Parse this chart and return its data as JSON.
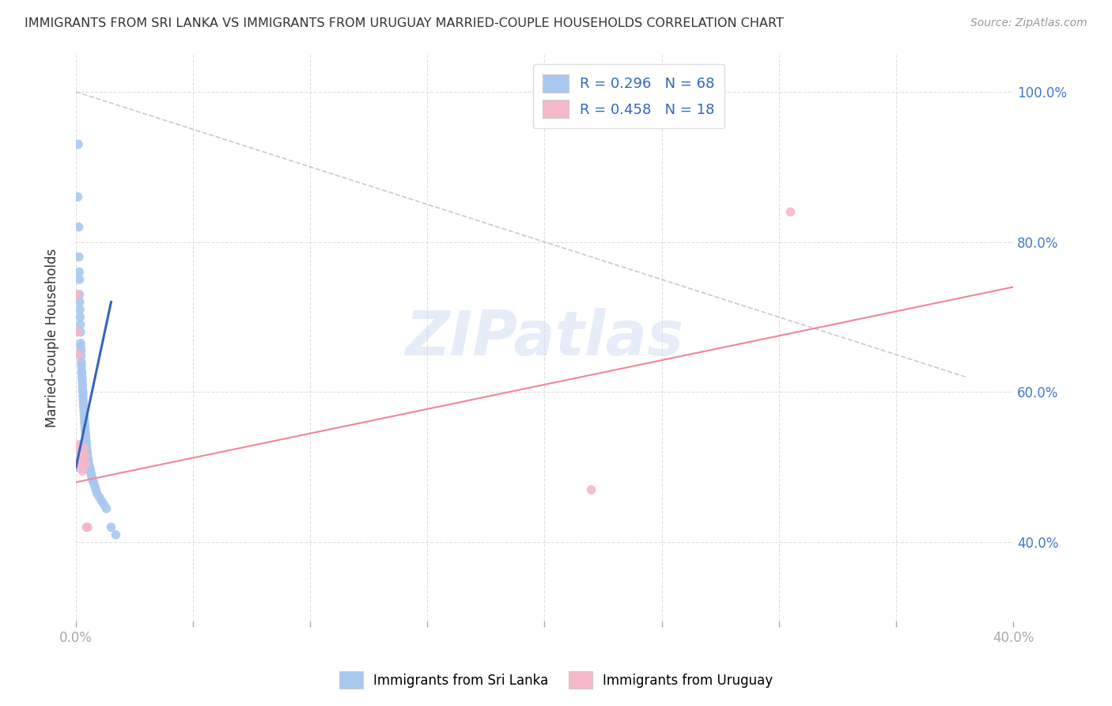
{
  "title": "IMMIGRANTS FROM SRI LANKA VS IMMIGRANTS FROM URUGUAY MARRIED-COUPLE HOUSEHOLDS CORRELATION CHART",
  "source": "Source: ZipAtlas.com",
  "ylabel": "Married-couple Households",
  "ytick_vals": [
    0.4,
    0.6,
    0.8,
    1.0
  ],
  "xlim": [
    0.0,
    0.4
  ],
  "ylim": [
    0.295,
    1.05
  ],
  "sri_lanka_R": 0.296,
  "sri_lanka_N": 68,
  "uruguay_R": 0.458,
  "uruguay_N": 18,
  "sri_lanka_color": "#a8c8f0",
  "uruguay_color": "#f4b8c8",
  "sri_lanka_line_color": "#3366bb",
  "uruguay_line_color": "#ee8899",
  "diagonal_color": "#bbbbcc",
  "background_color": "#ffffff",
  "watermark": "ZIPatlas",
  "sl_x": [
    0.0005,
    0.0008,
    0.001,
    0.0012,
    0.0013,
    0.0014,
    0.0015,
    0.0015,
    0.0016,
    0.0017,
    0.0018,
    0.0019,
    0.002,
    0.002,
    0.0021,
    0.0022,
    0.0022,
    0.0023,
    0.0024,
    0.0025,
    0.0025,
    0.0026,
    0.0027,
    0.0028,
    0.0028,
    0.003,
    0.003,
    0.0031,
    0.0032,
    0.0033,
    0.0034,
    0.0035,
    0.0036,
    0.0037,
    0.0038,
    0.0039,
    0.004,
    0.0041,
    0.0042,
    0.0043,
    0.0044,
    0.0045,
    0.0046,
    0.0048,
    0.0049,
    0.005,
    0.0052,
    0.0053,
    0.0055,
    0.0056,
    0.0058,
    0.006,
    0.0062,
    0.0064,
    0.0065,
    0.0067,
    0.007,
    0.0072,
    0.0075,
    0.008,
    0.0085,
    0.009,
    0.01,
    0.011,
    0.012,
    0.013,
    0.015,
    0.017
  ],
  "sl_y": [
    0.5,
    0.86,
    0.93,
    0.82,
    0.78,
    0.76,
    0.75,
    0.73,
    0.72,
    0.71,
    0.7,
    0.69,
    0.68,
    0.665,
    0.66,
    0.655,
    0.648,
    0.64,
    0.635,
    0.628,
    0.625,
    0.62,
    0.615,
    0.61,
    0.605,
    0.6,
    0.595,
    0.59,
    0.585,
    0.58,
    0.575,
    0.57,
    0.565,
    0.56,
    0.556,
    0.552,
    0.548,
    0.544,
    0.54,
    0.536,
    0.532,
    0.528,
    0.524,
    0.52,
    0.516,
    0.512,
    0.51,
    0.508,
    0.504,
    0.502,
    0.5,
    0.498,
    0.495,
    0.492,
    0.49,
    0.488,
    0.485,
    0.482,
    0.48,
    0.475,
    0.47,
    0.465,
    0.46,
    0.455,
    0.45,
    0.445,
    0.42,
    0.41
  ],
  "ur_x": [
    0.0005,
    0.0008,
    0.001,
    0.0012,
    0.0015,
    0.0018,
    0.002,
    0.0022,
    0.0025,
    0.0028,
    0.003,
    0.0035,
    0.0038,
    0.004,
    0.0045,
    0.005,
    0.22,
    0.305
  ],
  "ur_y": [
    0.73,
    0.68,
    0.65,
    0.53,
    0.52,
    0.51,
    0.505,
    0.5,
    0.498,
    0.495,
    0.51,
    0.525,
    0.515,
    0.505,
    0.42,
    0.42,
    0.47,
    0.84
  ]
}
